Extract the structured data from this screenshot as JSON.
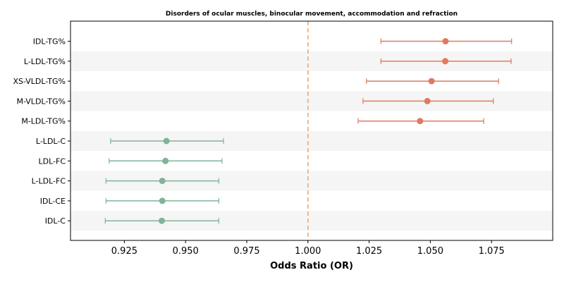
{
  "chart_data": {
    "type": "forest",
    "title": "Disorders of ocular muscles, binocular movement, accommodation and refraction",
    "xlabel": "Odds Ratio (OR)",
    "xlim": [
      0.903,
      1.1
    ],
    "xticks": [
      0.925,
      0.95,
      0.975,
      1.0,
      1.025,
      1.05,
      1.075
    ],
    "xtick_labels": [
      "0.925",
      "0.950",
      "0.975",
      "1.000",
      "1.025",
      "1.050",
      "1.075"
    ],
    "reference_line": 1.0,
    "row_shading": "alternating",
    "colors": {
      "positive": "#e07a5f",
      "negative": "#81b29a",
      "reference": "#f4a261",
      "band": "#f5f5f5"
    },
    "rows": [
      {
        "label": "IDL-TG%",
        "or": 1.0562,
        "lower": 1.0298,
        "upper": 1.0832
      },
      {
        "label": "L-LDL-TG%",
        "or": 1.0561,
        "lower": 1.0298,
        "upper": 1.083
      },
      {
        "label": "XS-VLDL-TG%",
        "or": 1.0505,
        "lower": 1.0239,
        "upper": 1.0779
      },
      {
        "label": "M-VLDL-TG%",
        "or": 1.0488,
        "lower": 1.0225,
        "upper": 1.0757
      },
      {
        "label": "M-LDL-TG%",
        "or": 1.0458,
        "lower": 1.0205,
        "upper": 1.0718
      },
      {
        "label": "L-LDL-C",
        "or": 0.9422,
        "lower": 0.9194,
        "upper": 0.9655
      },
      {
        "label": "LDL-FC",
        "or": 0.9418,
        "lower": 0.9188,
        "upper": 0.9649
      },
      {
        "label": "L-LDL-FC",
        "or": 0.9405,
        "lower": 0.9175,
        "upper": 0.9636
      },
      {
        "label": "IDL-CE",
        "or": 0.9405,
        "lower": 0.9175,
        "upper": 0.9636
      },
      {
        "label": "IDL-C",
        "or": 0.9403,
        "lower": 0.9172,
        "upper": 0.9636
      }
    ]
  }
}
